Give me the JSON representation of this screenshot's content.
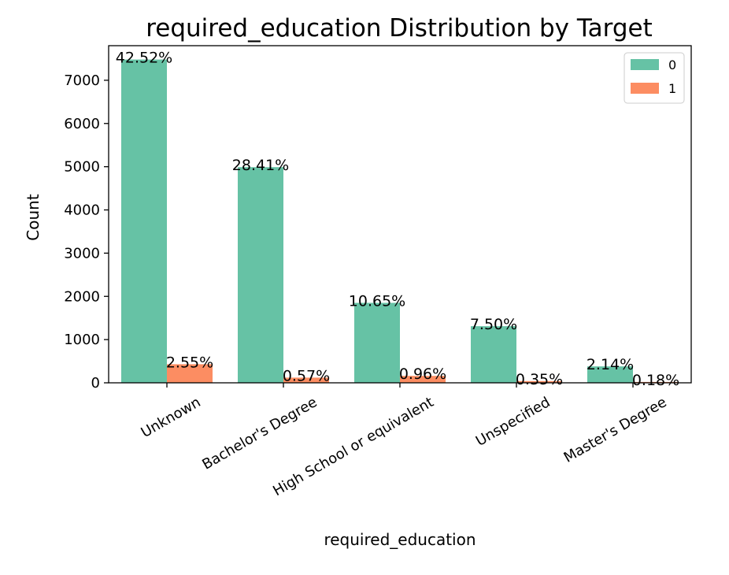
{
  "chart_data": {
    "type": "bar",
    "title": "required_education Distribution by Target",
    "xlabel": "required_education",
    "ylabel": "Count",
    "categories": [
      "Unknown",
      "Bachelor's Degree",
      "High School or equivalent",
      "Unspecified",
      "Master's Degree"
    ],
    "series": [
      {
        "name": "0",
        "color": "#66c2a5",
        "values": [
          7480,
          4990,
          1850,
          1310,
          380
        ],
        "labels": [
          "42.52%",
          "28.41%",
          "10.65%",
          "7.50%",
          "2.14%"
        ]
      },
      {
        "name": "1",
        "color": "#fc8d62",
        "values": [
          430,
          120,
          160,
          40,
          20
        ],
        "labels": [
          "2.55%",
          "0.57%",
          "0.96%",
          "0.35%",
          "0.18%"
        ]
      }
    ],
    "ylim": [
      0,
      7800
    ],
    "yticks": [
      "0",
      "1000",
      "2000",
      "3000",
      "4000",
      "5000",
      "6000",
      "7000"
    ],
    "legend": {
      "position": "top-right",
      "entries": [
        "0",
        "1"
      ]
    },
    "grid": false
  }
}
